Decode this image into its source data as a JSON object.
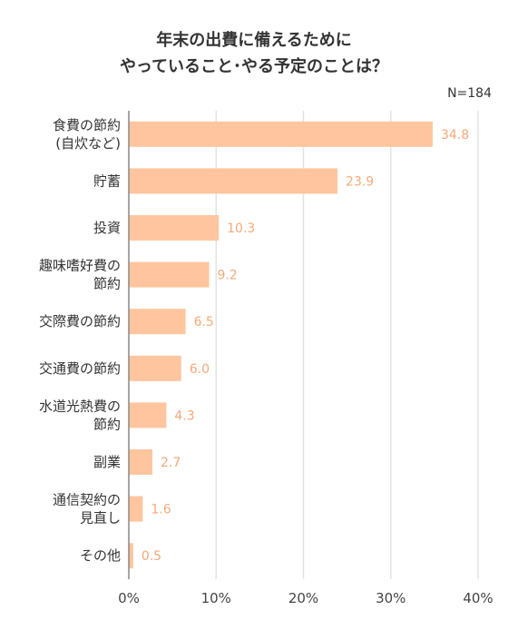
{
  "chart_data": {
    "type": "bar",
    "orientation": "horizontal",
    "title_lines": [
      "年末の出費に備えるために",
      "やっていること･やる予定のことは？"
    ],
    "sample_size": "N=184",
    "categories": [
      [
        "食費の節約",
        "(自炊など)"
      ],
      [
        "貯蓄"
      ],
      [
        "投資"
      ],
      [
        "趣味嗜好費の",
        "節約"
      ],
      [
        "交際費の節約"
      ],
      [
        "交通費の節約"
      ],
      [
        "水道光熱費の",
        "節約"
      ],
      [
        "副業"
      ],
      [
        "通信契約の",
        "見直し"
      ],
      [
        "その他"
      ]
    ],
    "values": [
      34.8,
      23.9,
      10.3,
      9.2,
      6.5,
      6.0,
      4.3,
      2.7,
      1.6,
      0.5
    ],
    "value_labels": [
      "34.8",
      "23.9",
      "10.3",
      "9.2",
      "6.5",
      "6.0",
      "4.3",
      "2.7",
      "1.6",
      "0.5"
    ],
    "xlim": [
      0,
      40
    ],
    "x_ticks": [
      0,
      10,
      20,
      30,
      40
    ],
    "x_tick_labels": [
      "0%",
      "10%",
      "20%",
      "30%",
      "40%"
    ],
    "grid": true,
    "colors": {
      "bar": "#FFC59E",
      "value_label": "#F5A97A",
      "grid": "#E3E3E3",
      "axis": "#888888"
    }
  }
}
